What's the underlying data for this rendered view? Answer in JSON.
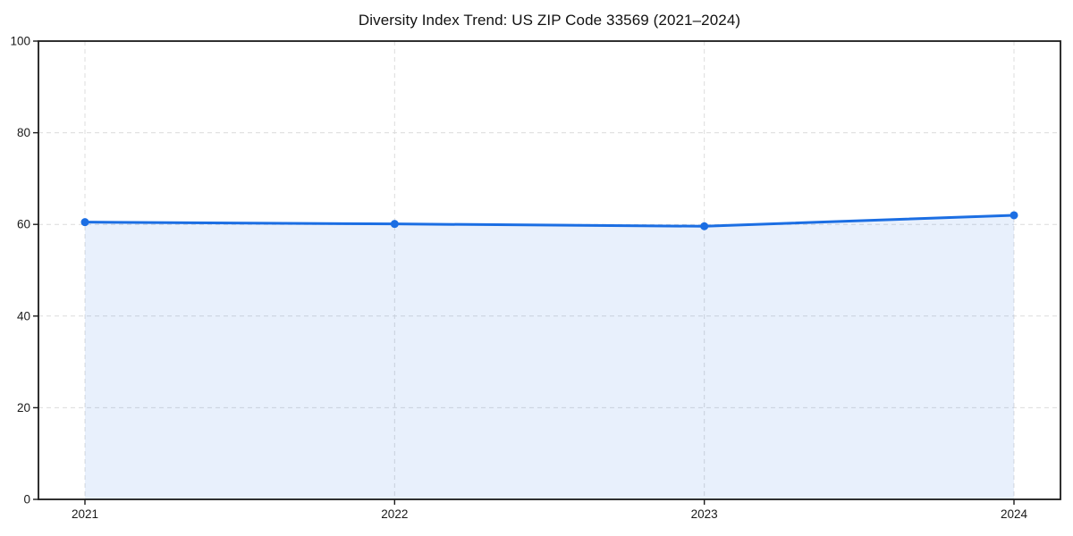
{
  "title": "Diversity Index Trend: US ZIP Code 33569 (2021–2024)",
  "chart_data": {
    "type": "area",
    "title": "Diversity Index Trend: US ZIP Code 33569 (2021–2024)",
    "x": [
      "2021",
      "2022",
      "2023",
      "2024"
    ],
    "series": [
      {
        "name": "Diversity Index",
        "values": [
          60.5,
          60.1,
          59.6,
          62.0
        ]
      }
    ],
    "xlabel": "",
    "ylabel": "",
    "ylim": [
      0,
      100
    ],
    "yticks": [
      0,
      20,
      40,
      60,
      80,
      100
    ],
    "grid": "dashed",
    "legend": "none",
    "colors": {
      "line": "#1b6ee3",
      "marker": "#1b6ee3",
      "fill": "rgba(27,110,227,0.10)",
      "grid": "#dcdcdc",
      "axis": "#1a1a1a",
      "tick_text": "#1a1a1a",
      "background": "#ffffff"
    }
  }
}
